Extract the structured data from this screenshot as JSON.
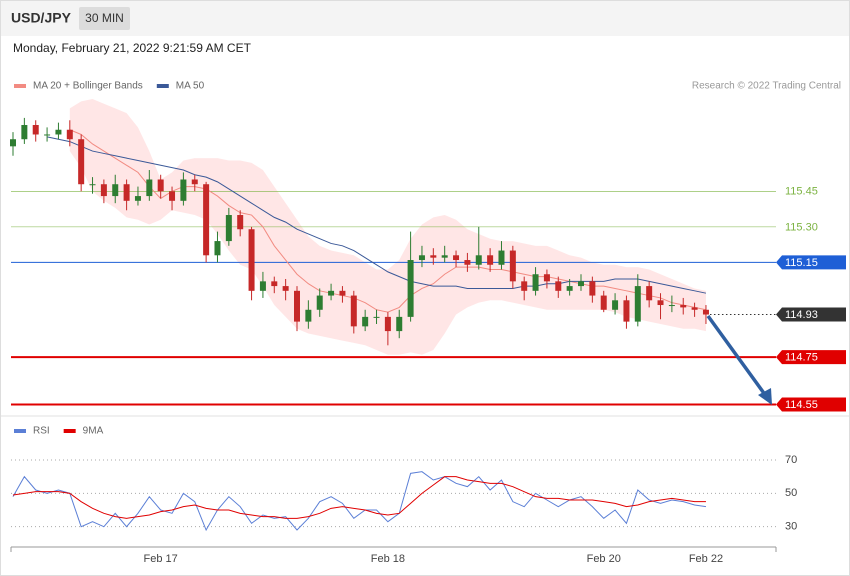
{
  "header": {
    "symbol": "USD/JPY",
    "interval": "30 MIN",
    "datetime": "Monday, February 21, 2022 9:21:59 AM CET"
  },
  "chart_data": [
    {
      "type": "candlestick",
      "source": "Research © 2022 Trading Central",
      "legend": "top-left",
      "categories": [
        null,
        null,
        null,
        null,
        null,
        null,
        null,
        null,
        null,
        null,
        null,
        null,
        null,
        "Feb 17",
        null,
        null,
        null,
        null,
        null,
        null,
        null,
        null,
        null,
        null,
        null,
        null,
        null,
        null,
        null,
        null,
        null,
        null,
        null,
        "Feb 18",
        null,
        null,
        null,
        null,
        null,
        null,
        null,
        null,
        null,
        null,
        null,
        null,
        null,
        null,
        null,
        null,
        null,
        null,
        "Feb 20",
        null,
        null,
        null,
        null,
        null,
        null,
        null,
        null,
        "Feb 22"
      ],
      "up_color": "#2e7d32",
      "down_color": "#c62828",
      "open": [
        115.64,
        115.67,
        115.73,
        115.69,
        115.69,
        115.71,
        115.67,
        115.48,
        115.48,
        115.43,
        115.48,
        115.41,
        115.43,
        115.5,
        115.45,
        115.41,
        115.5,
        115.48,
        115.18,
        115.24,
        115.35,
        115.29,
        115.03,
        115.07,
        115.05,
        115.03,
        114.9,
        114.95,
        115.01,
        115.03,
        115.01,
        114.88,
        114.92,
        114.92,
        114.86,
        114.92,
        115.16,
        115.18,
        115.17,
        115.18,
        115.16,
        115.14,
        115.18,
        115.14,
        115.2,
        115.07,
        115.03,
        115.1,
        115.07,
        115.03,
        115.05,
        115.07,
        115.01,
        114.95,
        114.99,
        114.9,
        115.05,
        114.99,
        114.97,
        114.97,
        114.96,
        114.95
      ],
      "high": [
        115.7,
        115.76,
        115.75,
        115.72,
        115.74,
        115.75,
        115.69,
        115.51,
        115.5,
        115.52,
        115.5,
        115.47,
        115.54,
        115.52,
        115.47,
        115.53,
        115.52,
        115.49,
        115.28,
        115.38,
        115.37,
        115.3,
        115.11,
        115.09,
        115.08,
        115.05,
        114.99,
        115.04,
        115.06,
        115.05,
        115.03,
        114.95,
        114.95,
        114.94,
        114.95,
        115.28,
        115.22,
        115.21,
        115.22,
        115.2,
        115.19,
        115.3,
        115.21,
        115.24,
        115.22,
        115.09,
        115.13,
        115.12,
        115.09,
        115.08,
        115.1,
        115.09,
        115.03,
        115.02,
        115.01,
        115.1,
        115.07,
        115.02,
        115.01,
        115.0,
        114.98,
        114.97
      ],
      "low": [
        115.6,
        115.65,
        115.66,
        115.66,
        115.67,
        115.64,
        115.45,
        115.44,
        115.4,
        115.4,
        115.37,
        115.39,
        115.41,
        115.42,
        115.37,
        115.39,
        115.45,
        115.15,
        115.15,
        115.22,
        115.26,
        114.99,
        115.0,
        115.02,
        114.99,
        114.86,
        114.87,
        114.92,
        114.99,
        114.98,
        114.85,
        114.86,
        114.89,
        114.8,
        114.83,
        114.9,
        115.13,
        115.14,
        115.15,
        115.13,
        115.11,
        115.12,
        115.11,
        115.12,
        115.04,
        114.99,
        115.01,
        115.04,
        115.0,
        115.01,
        115.03,
        114.98,
        114.94,
        114.93,
        114.87,
        114.88,
        114.96,
        114.91,
        114.94,
        114.93,
        114.92,
        114.89
      ],
      "close": [
        115.67,
        115.73,
        115.69,
        115.69,
        115.71,
        115.67,
        115.48,
        115.48,
        115.43,
        115.48,
        115.41,
        115.43,
        115.5,
        115.45,
        115.41,
        115.5,
        115.48,
        115.18,
        115.24,
        115.35,
        115.29,
        115.03,
        115.07,
        115.05,
        115.03,
        114.9,
        114.95,
        115.01,
        115.03,
        115.01,
        114.88,
        114.92,
        114.92,
        114.86,
        114.92,
        115.16,
        115.18,
        115.17,
        115.18,
        115.16,
        115.14,
        115.18,
        115.14,
        115.2,
        115.07,
        115.03,
        115.1,
        115.07,
        115.03,
        115.05,
        115.07,
        115.01,
        114.95,
        114.99,
        114.9,
        115.05,
        114.99,
        114.97,
        114.97,
        114.96,
        114.95,
        114.93
      ],
      "series": [
        {
          "name": "MA 20 + Bollinger Bands",
          "color": "#f28b82",
          "band_color": "#ffdede",
          "values": [
            null,
            null,
            null,
            null,
            null,
            115.71,
            115.69,
            115.65,
            115.62,
            115.59,
            115.56,
            115.53,
            115.47,
            115.42,
            115.45,
            115.47,
            115.47,
            115.46,
            115.43,
            115.39,
            115.36,
            115.35,
            115.3,
            115.22,
            115.16,
            115.1,
            115.06,
            115.03,
            115.02,
            115.01,
            115.0,
            114.98,
            114.95,
            114.94,
            114.96,
            115.01,
            115.04,
            115.06,
            115.1,
            115.13,
            115.13,
            115.13,
            115.12,
            115.12,
            115.11,
            115.1,
            115.09,
            115.09,
            115.08,
            115.07,
            115.06,
            115.05,
            115.05,
            115.04,
            115.03,
            115.02,
            115.01,
            115.0,
            114.98,
            114.97,
            114.96,
            114.95
          ],
          "upper": [
            null,
            null,
            null,
            null,
            null,
            115.8,
            115.83,
            115.84,
            115.82,
            115.8,
            115.78,
            115.72,
            115.62,
            115.5,
            115.53,
            115.58,
            115.59,
            115.59,
            115.59,
            115.58,
            115.58,
            115.57,
            115.54,
            115.47,
            115.4,
            115.33,
            115.26,
            115.22,
            115.2,
            115.19,
            115.18,
            115.15,
            115.12,
            115.12,
            115.16,
            115.25,
            115.31,
            115.34,
            115.35,
            115.33,
            115.29,
            115.27,
            115.25,
            115.24,
            115.24,
            115.23,
            115.22,
            115.22,
            115.2,
            115.18,
            115.17,
            115.15,
            115.14,
            115.14,
            115.13,
            115.13,
            115.12,
            115.1,
            115.08,
            115.06,
            115.04,
            115.03
          ],
          "lower": [
            null,
            null,
            null,
            null,
            null,
            115.62,
            115.55,
            115.45,
            115.41,
            115.38,
            115.34,
            115.33,
            115.31,
            115.33,
            115.37,
            115.36,
            115.35,
            115.33,
            115.27,
            115.2,
            115.14,
            115.12,
            115.05,
            114.97,
            114.92,
            114.87,
            114.85,
            114.84,
            114.83,
            114.82,
            114.81,
            114.8,
            114.78,
            114.76,
            114.76,
            114.77,
            114.76,
            114.78,
            114.85,
            114.93,
            114.96,
            114.98,
            114.99,
            114.99,
            114.98,
            114.97,
            114.96,
            114.95,
            114.95,
            114.95,
            114.95,
            114.95,
            114.95,
            114.94,
            114.92,
            114.91,
            114.9,
            114.89,
            114.88,
            114.87,
            114.87,
            114.86
          ]
        },
        {
          "name": "MA 50",
          "color": "#3b5998",
          "values": [
            null,
            null,
            null,
            115.68,
            115.67,
            115.66,
            115.64,
            115.62,
            115.61,
            115.6,
            115.59,
            115.58,
            115.57,
            115.56,
            115.55,
            115.54,
            115.52,
            115.51,
            115.49,
            115.46,
            115.43,
            115.4,
            115.37,
            115.34,
            115.32,
            115.29,
            115.27,
            115.25,
            115.23,
            115.22,
            115.2,
            115.17,
            115.14,
            115.11,
            115.09,
            115.07,
            115.06,
            115.05,
            115.05,
            115.05,
            115.04,
            115.04,
            115.04,
            115.04,
            115.04,
            115.05,
            115.05,
            115.06,
            115.06,
            115.07,
            115.07,
            115.07,
            115.07,
            115.08,
            115.08,
            115.08,
            115.07,
            115.06,
            115.05,
            115.04,
            115.03,
            115.02
          ]
        }
      ],
      "levels": [
        {
          "value": 115.45,
          "label": "115.45",
          "color": "#7cb342",
          "kind": "text",
          "style": "solid",
          "line_width": 0.6
        },
        {
          "value": 115.3,
          "label": "115.30",
          "color": "#7cb342",
          "kind": "text",
          "style": "solid",
          "line_width": 0.6
        },
        {
          "value": 115.15,
          "label": "115.15",
          "color": "#1e5fd6",
          "kind": "box",
          "style": "solid",
          "line_width": 1
        },
        {
          "value": 114.93,
          "label": "114.93",
          "color": "#333333",
          "kind": "box",
          "style": "dotted",
          "line_width": 1
        },
        {
          "value": 114.75,
          "label": "114.75",
          "color": "#e00000",
          "kind": "box",
          "style": "solid",
          "line_width": 2
        },
        {
          "value": 114.55,
          "label": "114.55",
          "color": "#e00000",
          "kind": "box",
          "style": "solid",
          "line_width": 2
        }
      ],
      "ylim": [
        114.51,
        115.92
      ]
    },
    {
      "type": "line",
      "legend": "top-left",
      "grid": "dotted",
      "series": [
        {
          "name": "RSI",
          "color": "#5b7fd6",
          "values": [
            48,
            60,
            52,
            50,
            52,
            50,
            30,
            33,
            30,
            38,
            30,
            38,
            48,
            40,
            38,
            50,
            45,
            28,
            40,
            48,
            42,
            32,
            37,
            35,
            36,
            28,
            35,
            45,
            48,
            44,
            35,
            40,
            40,
            33,
            38,
            62,
            63,
            58,
            60,
            56,
            54,
            60,
            52,
            58,
            45,
            42,
            50,
            46,
            42,
            46,
            48,
            42,
            35,
            40,
            32,
            52,
            46,
            44,
            46,
            45,
            43,
            42
          ]
        },
        {
          "name": "9MA",
          "color": "#e00000",
          "values": [
            49,
            50,
            51,
            51,
            51,
            50,
            45,
            41,
            38,
            36,
            35,
            36,
            37,
            39,
            40,
            42,
            43,
            41,
            40,
            40,
            38,
            37,
            36,
            36,
            35,
            35,
            36,
            38,
            41,
            42,
            41,
            40,
            38,
            37,
            38,
            44,
            50,
            55,
            60,
            60,
            58,
            57,
            56,
            56,
            54,
            51,
            48,
            47,
            47,
            46,
            46,
            46,
            45,
            44,
            42,
            43,
            45,
            46,
            47,
            46,
            45,
            45
          ]
        }
      ],
      "ylim": [
        19,
        82
      ],
      "yticks": [
        70,
        50,
        30
      ]
    }
  ]
}
